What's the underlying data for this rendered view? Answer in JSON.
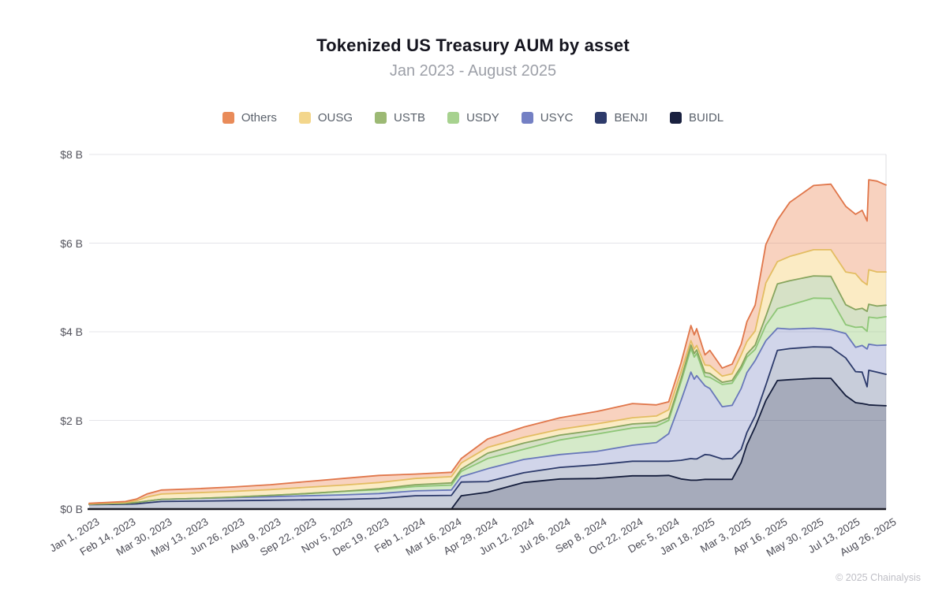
{
  "title": "Tokenized US Treasury AUM by asset",
  "subtitle": "Jan 2023 - August 2025",
  "footer": "© 2025 Chainalysis",
  "colors": {
    "background": "#ffffff",
    "grid": "#e4e4e9",
    "axis": "#1b1b24",
    "right_border": "#dcdce1"
  },
  "chart_data": {
    "type": "area",
    "stacked": true,
    "title": "Tokenized US Treasury AUM by asset",
    "subtitle": "Jan 2023 - August 2025",
    "y_unit": "USD billions",
    "x_unit": "days since Jan 1, 2023",
    "x_max": 968,
    "y_max": 8,
    "grid": "horizontal",
    "legend_position": "top-center",
    "y_ticks": [
      {
        "label": "$0 B",
        "value": 0
      },
      {
        "label": "$2 B",
        "value": 2
      },
      {
        "label": "$4 B",
        "value": 4
      },
      {
        "label": "$6 B",
        "value": 6
      },
      {
        "label": "$8 B",
        "value": 8
      }
    ],
    "x_ticks": [
      {
        "label": "Jan 1, 2023",
        "t": 0
      },
      {
        "label": "Feb 14, 2023",
        "t": 44
      },
      {
        "label": "Mar 30, 2023",
        "t": 88
      },
      {
        "label": "May 13, 2023",
        "t": 132
      },
      {
        "label": "Jun 26, 2023",
        "t": 176
      },
      {
        "label": "Aug 9, 2023",
        "t": 220
      },
      {
        "label": "Sep 22, 2023",
        "t": 264
      },
      {
        "label": "Nov 5, 2023",
        "t": 308
      },
      {
        "label": "Dec 19, 2023",
        "t": 352
      },
      {
        "label": "Feb 1, 2024",
        "t": 396
      },
      {
        "label": "Mar 16, 2024",
        "t": 440
      },
      {
        "label": "Apr 29, 2024",
        "t": 484
      },
      {
        "label": "Jun 12, 2024",
        "t": 528
      },
      {
        "label": "Jul 26, 2024",
        "t": 572
      },
      {
        "label": "Sep 8, 2024",
        "t": 616
      },
      {
        "label": "Oct 22, 2024",
        "t": 660
      },
      {
        "label": "Dec 5, 2024",
        "t": 704
      },
      {
        "label": "Jan 18, 2025",
        "t": 748
      },
      {
        "label": "Mar 3, 2025",
        "t": 792
      },
      {
        "label": "Apr 16, 2025",
        "t": 836
      },
      {
        "label": "May 30, 2025",
        "t": 880
      },
      {
        "label": "Jul 13, 2025",
        "t": 924
      },
      {
        "label": "Aug 26, 2025",
        "t": 968
      }
    ],
    "series": [
      {
        "name": "Others",
        "line": "#e0764a",
        "fill": "rgba(236,138,88,0.38)",
        "swatch": "#e98b59"
      },
      {
        "name": "OUSG",
        "line": "#e3bd62",
        "fill": "rgba(247,216,138,0.50)",
        "swatch": "#f3d68c"
      },
      {
        "name": "USTB",
        "line": "#87a55e",
        "fill": "rgba(158,184,118,0.42)",
        "swatch": "#9cb974"
      },
      {
        "name": "USDY",
        "line": "#8ec677",
        "fill": "rgba(168,212,142,0.48)",
        "swatch": "#a7d28f"
      },
      {
        "name": "USYC",
        "line": "#6877ba",
        "fill": "rgba(124,136,196,0.35)",
        "swatch": "#7480c4"
      },
      {
        "name": "BENJI",
        "line": "#2c3a6b",
        "fill": "rgba(72,88,134,0.30)",
        "swatch": "#2e3b6b"
      },
      {
        "name": "BUIDL",
        "line": "#141d3c",
        "fill": "rgba(44,56,92,0.42)",
        "swatch": "#19203f"
      }
    ],
    "stack_bottom_to_top": [
      "BUIDL",
      "BENJI",
      "USYC",
      "USDY",
      "USTB",
      "OUSG",
      "Others"
    ],
    "samples_note": "v = [BUIDL,BENJI,USYC,USDY,USTB,OUSG,Others] in $B at t days after Jan 1 2023",
    "samples": [
      {
        "t": 0,
        "v": [
          0,
          0.1,
          0.01,
          0,
          0,
          0.01,
          0.01
        ]
      },
      {
        "t": 44,
        "v": [
          0,
          0.11,
          0.02,
          0,
          0,
          0.02,
          0.02
        ]
      },
      {
        "t": 58,
        "v": [
          0,
          0.12,
          0.03,
          0,
          0,
          0.04,
          0.04
        ]
      },
      {
        "t": 70,
        "v": [
          0,
          0.14,
          0.04,
          0,
          0,
          0.09,
          0.07
        ]
      },
      {
        "t": 88,
        "v": [
          0,
          0.17,
          0.05,
          0,
          0,
          0.12,
          0.09
        ]
      },
      {
        "t": 132,
        "v": [
          0,
          0.18,
          0.06,
          0,
          0,
          0.13,
          0.09
        ]
      },
      {
        "t": 176,
        "v": [
          0,
          0.19,
          0.07,
          0.01,
          0,
          0.13,
          0.1
        ]
      },
      {
        "t": 220,
        "v": [
          0,
          0.2,
          0.08,
          0.03,
          0,
          0.13,
          0.11
        ]
      },
      {
        "t": 264,
        "v": [
          0,
          0.21,
          0.09,
          0.05,
          0,
          0.14,
          0.13
        ]
      },
      {
        "t": 308,
        "v": [
          0,
          0.22,
          0.1,
          0.08,
          0,
          0.14,
          0.15
        ]
      },
      {
        "t": 352,
        "v": [
          0,
          0.24,
          0.11,
          0.09,
          0.02,
          0.14,
          0.16
        ]
      },
      {
        "t": 396,
        "v": [
          0,
          0.3,
          0.11,
          0.1,
          0.04,
          0.14,
          0.1
        ]
      },
      {
        "t": 440,
        "v": [
          0,
          0.31,
          0.12,
          0.11,
          0.05,
          0.14,
          0.1
        ]
      },
      {
        "t": 452,
        "v": [
          0.3,
          0.31,
          0.12,
          0.12,
          0.05,
          0.14,
          0.1
        ]
      },
      {
        "t": 484,
        "v": [
          0.38,
          0.24,
          0.29,
          0.23,
          0.12,
          0.13,
          0.19
        ]
      },
      {
        "t": 528,
        "v": [
          0.6,
          0.22,
          0.3,
          0.23,
          0.14,
          0.13,
          0.23
        ]
      },
      {
        "t": 572,
        "v": [
          0.68,
          0.26,
          0.29,
          0.33,
          0.11,
          0.13,
          0.26
        ]
      },
      {
        "t": 616,
        "v": [
          0.69,
          0.31,
          0.3,
          0.39,
          0.09,
          0.14,
          0.28
        ]
      },
      {
        "t": 660,
        "v": [
          0.75,
          0.33,
          0.36,
          0.39,
          0.09,
          0.14,
          0.32
        ]
      },
      {
        "t": 689,
        "v": [
          0.75,
          0.33,
          0.42,
          0.37,
          0.08,
          0.15,
          0.25
        ]
      },
      {
        "t": 704,
        "v": [
          0.76,
          0.32,
          0.62,
          0.3,
          0.06,
          0.18,
          0.18
        ]
      },
      {
        "t": 719,
        "v": [
          0.68,
          0.42,
          1.35,
          0.42,
          0.07,
          0.15,
          0.21
        ]
      },
      {
        "t": 731,
        "v": [
          0.65,
          0.49,
          1.95,
          0.53,
          0.08,
          0.1,
          0.34
        ]
      },
      {
        "t": 735,
        "v": [
          0.65,
          0.48,
          1.8,
          0.5,
          0.08,
          0.1,
          0.32
        ]
      },
      {
        "t": 738,
        "v": [
          0.65,
          0.48,
          1.88,
          0.5,
          0.08,
          0.1,
          0.38
        ]
      },
      {
        "t": 748,
        "v": [
          0.67,
          0.56,
          1.55,
          0.21,
          0.09,
          0.17,
          0.23
        ]
      },
      {
        "t": 754,
        "v": [
          0.67,
          0.55,
          1.5,
          0.25,
          0.09,
          0.18,
          0.34
        ]
      },
      {
        "t": 769,
        "v": [
          0.67,
          0.46,
          1.18,
          0.5,
          0.05,
          0.14,
          0.18
        ]
      },
      {
        "t": 781,
        "v": [
          0.67,
          0.47,
          1.2,
          0.5,
          0.06,
          0.15,
          0.22
        ]
      },
      {
        "t": 792,
        "v": [
          1.05,
          0.3,
          1.37,
          0.44,
          0.06,
          0.26,
          0.24
        ]
      },
      {
        "t": 799,
        "v": [
          1.45,
          0.28,
          1.35,
          0.35,
          0.07,
          0.28,
          0.45
        ]
      },
      {
        "t": 809,
        "v": [
          1.85,
          0.25,
          1.25,
          0.25,
          0.1,
          0.32,
          0.58
        ]
      },
      {
        "t": 822,
        "v": [
          2.45,
          0.35,
          1.0,
          0.35,
          0.2,
          0.75,
          0.87
        ]
      },
      {
        "t": 836,
        "v": [
          2.9,
          0.68,
          0.5,
          0.44,
          0.56,
          0.5,
          0.94
        ]
      },
      {
        "t": 851,
        "v": [
          2.92,
          0.7,
          0.44,
          0.54,
          0.55,
          0.55,
          1.22
        ]
      },
      {
        "t": 880,
        "v": [
          2.95,
          0.71,
          0.42,
          0.68,
          0.5,
          0.59,
          1.45
        ]
      },
      {
        "t": 901,
        "v": [
          2.95,
          0.7,
          0.4,
          0.7,
          0.5,
          0.6,
          1.48
        ]
      },
      {
        "t": 919,
        "v": [
          2.56,
          0.85,
          0.55,
          0.2,
          0.45,
          0.74,
          1.48
        ]
      },
      {
        "t": 931,
        "v": [
          2.4,
          0.7,
          0.55,
          0.45,
          0.4,
          0.81,
          1.34
        ]
      },
      {
        "t": 939,
        "v": [
          2.38,
          0.71,
          0.6,
          0.42,
          0.42,
          0.61,
          1.6
        ]
      },
      {
        "t": 945,
        "v": [
          2.36,
          0.4,
          0.85,
          0.4,
          0.45,
          0.6,
          1.44
        ]
      },
      {
        "t": 947,
        "v": [
          2.35,
          0.78,
          0.59,
          0.61,
          0.29,
          0.78,
          2.03
        ]
      },
      {
        "t": 957,
        "v": [
          2.34,
          0.75,
          0.6,
          0.62,
          0.27,
          0.77,
          2.05
        ]
      },
      {
        "t": 968,
        "v": [
          2.33,
          0.71,
          0.66,
          0.64,
          0.26,
          0.75,
          1.96
        ]
      }
    ]
  }
}
